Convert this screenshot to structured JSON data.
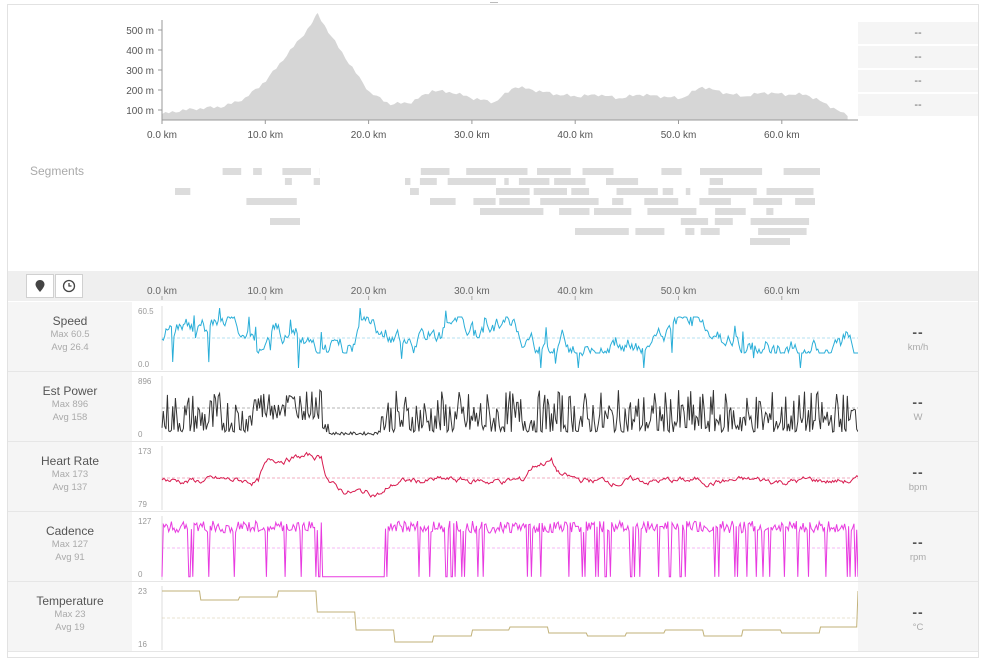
{
  "elevation": {
    "y_ticks": [
      "500 m",
      "400 m",
      "300 m",
      "200 m",
      "100 m"
    ],
    "x_ticks": [
      "0.0 km",
      "10.0 km",
      "20.0 km",
      "30.0 km",
      "40.0 km",
      "50.0 km",
      "60.0 km"
    ],
    "right_values": [
      "--",
      "--",
      "--",
      "--"
    ]
  },
  "segments": {
    "label": "Segments"
  },
  "toolbar": {
    "x_ticks": [
      "0.0 km",
      "10.0 km",
      "20.0 km",
      "30.0 km",
      "40.0 km",
      "50.0 km",
      "60.0 km"
    ]
  },
  "metrics": [
    {
      "title": "Speed",
      "max": "Max 60.5",
      "avg": "Avg 26.4",
      "ymax": "60.5",
      "ymin": "0.0",
      "value": "--",
      "unit": "km/h",
      "color": "#2aaed8"
    },
    {
      "title": "Est Power",
      "max": "Max 896",
      "avg": "Avg 158",
      "ymax": "896",
      "ymin": "0",
      "value": "--",
      "unit": "W",
      "color": "#333333"
    },
    {
      "title": "Heart Rate",
      "max": "Max 173",
      "avg": "Avg 137",
      "ymax": "173",
      "ymin": "79",
      "value": "--",
      "unit": "bpm",
      "color": "#d81b4f"
    },
    {
      "title": "Cadence",
      "max": "Max 127",
      "avg": "Avg 91",
      "ymax": "127",
      "ymin": "0",
      "value": "--",
      "unit": "rpm",
      "color": "#e83be0"
    },
    {
      "title": "Temperature",
      "max": "Max 23",
      "avg": "Avg 19",
      "ymax": "23",
      "ymin": "16",
      "value": "--",
      "unit": "°C",
      "color": "#c2b27a"
    }
  ],
  "chart_data": [
    {
      "type": "area",
      "title": "",
      "xlabel": "",
      "ylabel": "",
      "x": [
        0,
        2,
        4,
        6,
        8,
        10,
        12,
        14,
        15,
        16,
        18,
        20,
        22,
        24,
        26,
        28,
        30,
        32,
        34,
        36,
        38,
        40,
        42,
        44,
        46,
        48,
        50,
        52,
        54,
        56,
        58,
        60,
        62,
        64,
        66
      ],
      "values": [
        30,
        50,
        60,
        70,
        110,
        200,
        330,
        460,
        540,
        450,
        290,
        140,
        80,
        90,
        150,
        140,
        110,
        90,
        170,
        150,
        130,
        120,
        130,
        110,
        130,
        120,
        110,
        170,
        140,
        120,
        140,
        130,
        130,
        80,
        20
      ],
      "ylim": [
        0,
        560
      ],
      "xlim": [
        0,
        67
      ]
    },
    {
      "type": "line",
      "series": [
        {
          "name": "Speed",
          "max": 60.5,
          "avg": 26.4
        }
      ]
    },
    {
      "type": "line",
      "series": [
        {
          "name": "Est Power",
          "max": 896,
          "avg": 158
        }
      ]
    },
    {
      "type": "line",
      "series": [
        {
          "name": "Heart Rate",
          "max": 173,
          "avg": 137
        }
      ]
    },
    {
      "type": "line",
      "series": [
        {
          "name": "Cadence",
          "max": 127,
          "avg": 91
        }
      ]
    },
    {
      "type": "line",
      "series": [
        {
          "name": "Temperature",
          "max": 23,
          "avg": 19
        }
      ]
    }
  ]
}
